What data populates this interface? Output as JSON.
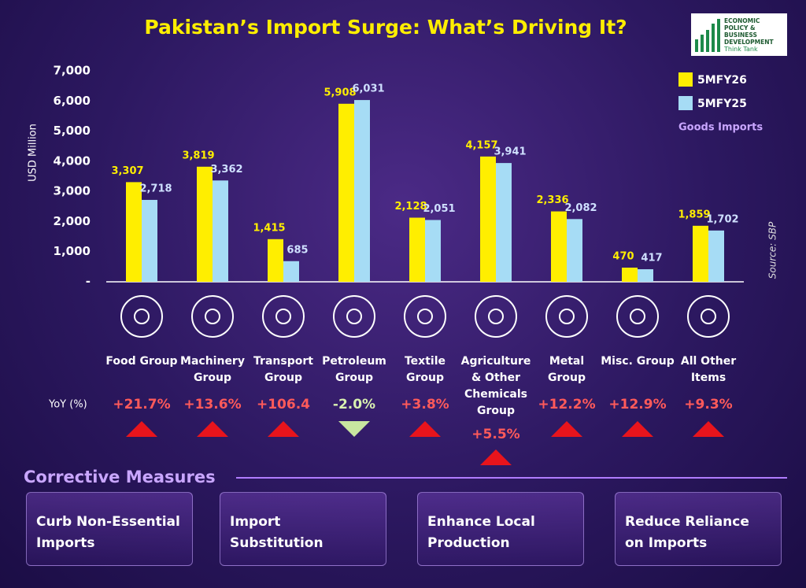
{
  "chart_data": {
    "type": "bar",
    "title": "Pakistan’s Import Surge: What’s Driving It?",
    "y_label": "USD Million",
    "source": "Source: SBP",
    "legend": "top-right",
    "legend_note": "Goods Imports",
    "categories": [
      "Food Group",
      "Machinery Group",
      "Transport Group",
      "Petroleum Group",
      "Textile Group",
      "Agriculture & Other Chemicals Group",
      "Metal Group",
      "Misc. Group",
      "All Other Items"
    ],
    "series": [
      {
        "name": "5MFY26",
        "color": "#ffee00",
        "values": [
          3307,
          3819,
          1415,
          5908,
          2128,
          4157,
          2336,
          470,
          1859
        ],
        "value_labels": [
          "3,307",
          "3,819",
          "1,415",
          "5,908",
          "2,128",
          "4,157",
          "2,336",
          "470",
          "1,859"
        ]
      },
      {
        "name": "5MFY25",
        "color": "#a6dcf5",
        "values": [
          2718,
          3362,
          685,
          6031,
          2051,
          3941,
          2082,
          417,
          1702
        ],
        "value_labels": [
          "2,718",
          "3,362",
          "685",
          "6,031",
          "2,051",
          "3,941",
          "2,082",
          "417",
          "1,702"
        ]
      }
    ],
    "ylim": [
      0,
      7000
    ],
    "yticks": [
      {
        "value": 0,
        "label": "-"
      },
      {
        "value": 1000,
        "label": "1,000"
      },
      {
        "value": 2000,
        "label": "2,000"
      },
      {
        "value": 3000,
        "label": "3,000"
      },
      {
        "value": 4000,
        "label": "4,000"
      },
      {
        "value": 5000,
        "label": "5,000"
      },
      {
        "value": 6000,
        "label": "6,000"
      },
      {
        "value": 7000,
        "label": "7,000"
      }
    ],
    "yoy": {
      "label": "YoY (%)",
      "values": [
        21.7,
        13.6,
        106.4,
        -2.0,
        3.8,
        5.5,
        12.2,
        12.9,
        9.3
      ],
      "value_labels": [
        "+21.7%",
        "+13.6%",
        "+106.4",
        "-2.0%",
        "+3.8%",
        "+5.5%",
        "+12.2%",
        "+12.9%",
        "+9.3%"
      ]
    }
  },
  "logo": {
    "name": "ECONOMIC POLICY & BUSINESS DEVELOPMENT",
    "tagline": "Think Tank"
  },
  "measures": {
    "title": "Corrective Measures",
    "items": [
      "Curb Non-Essential Imports",
      "Import Substitution",
      "Enhance Local Production",
      "Reduce Reliance on Imports"
    ]
  }
}
